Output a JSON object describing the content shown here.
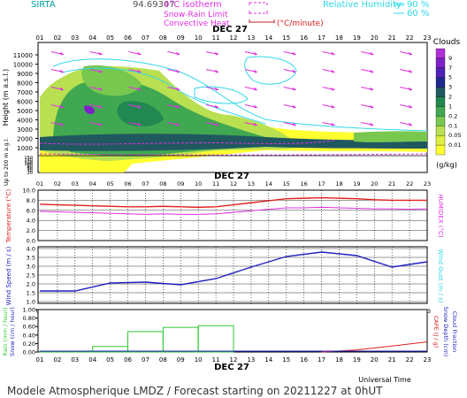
{
  "header": {
    "station": "SIRTA",
    "coords": "94.69347",
    "legend_0c": "0°C isotherm",
    "legend_snow": "Snow-Rain Limit",
    "legend_conv": "Convective Heat",
    "legend_conv_unit": "(°C/minute)",
    "rh_label": "Relative Humidity",
    "rh_90": "90 %",
    "rh_60": "60 %"
  },
  "colors": {
    "magenta": "#e030e0",
    "cyan": "#30d8e8",
    "red": "#e02020",
    "blue": "#2020c0",
    "green": "#30c830",
    "clouds": [
      "#ffff30",
      "#e0f040",
      "#b8e050",
      "#78c850",
      "#40a850",
      "#208850",
      "#205860",
      "#202890",
      "#5020b8",
      "#8020c8",
      "#b030d8"
    ]
  },
  "clouds_legend": {
    "title": "Clouds",
    "unit": "(g/kg)",
    "ticks": [
      "9",
      "7",
      "5",
      "3",
      "2",
      "1",
      "0.2",
      "0.1",
      "0.05",
      "0.01"
    ]
  },
  "date_label": "DEC 27",
  "hours": [
    "01",
    "02",
    "03",
    "04",
    "05",
    "06",
    "07",
    "08",
    "09",
    "10",
    "11",
    "12",
    "13",
    "14",
    "15",
    "16",
    "17",
    "18",
    "19",
    "20",
    "21",
    "22",
    "23"
  ],
  "chart_data": [
    {
      "type": "heatmap",
      "name": "clouds-cross-section",
      "ylabel": "Height (m a.s.l.)",
      "ylabel2": "Up to 200 m a.g.l.",
      "yticks_upper": [
        "11000",
        "10000",
        "9000",
        "8000",
        "7000",
        "6000",
        "5000",
        "4000",
        "3000",
        "2000",
        "1000"
      ],
      "yticks_lower": [
        "150",
        "140",
        "120",
        "100",
        "80",
        "60",
        "40",
        "20"
      ],
      "unit": "g/kg"
    },
    {
      "type": "line",
      "name": "temperature-panel",
      "ylabel": "Temperature (°C)",
      "ylabel_right": "HUMIDEX (°C)",
      "yticks": [
        "10.0",
        "8.0",
        "6.0",
        "4.0",
        "2.0",
        "0.0"
      ],
      "ylim": [
        0,
        10
      ],
      "x": [
        1,
        2,
        3,
        4,
        5,
        6,
        7,
        8,
        9,
        10,
        11,
        12,
        13,
        14,
        15,
        16,
        17,
        18,
        19,
        20,
        21,
        22,
        23
      ],
      "series": [
        {
          "values": [
            7.2,
            7.1,
            7.0,
            6.9,
            6.8,
            6.7,
            6.7,
            6.8,
            6.7,
            6.6,
            6.7,
            7.1,
            7.5,
            7.9,
            8.3,
            8.4,
            8.5,
            8.4,
            8.3,
            8.1,
            8.0,
            8.0,
            8.0
          ]
        },
        {
          "values": [
            5.8,
            5.7,
            5.6,
            5.5,
            5.4,
            5.3,
            5.2,
            5.3,
            5.2,
            5.2,
            5.3,
            5.6,
            5.9,
            6.2,
            6.5,
            6.5,
            6.6,
            6.5,
            6.4,
            6.3,
            6.3,
            6.2,
            6.3
          ]
        }
      ]
    },
    {
      "type": "line",
      "name": "wind-panel",
      "ylabel": "Wind Speed (m / s)",
      "ylabel_right": "Wind Gust (m / s)",
      "yticks": [
        "4.0",
        "3.5",
        "3.0",
        "2.5",
        "2.0",
        "1.5",
        "1.0"
      ],
      "ylim": [
        1.0,
        4.0
      ],
      "x": [
        1,
        3,
        5,
        7,
        9,
        11,
        13,
        15,
        17,
        19,
        21,
        23
      ],
      "series": [
        {
          "values": [
            1.6,
            1.6,
            2.05,
            2.1,
            1.95,
            2.3,
            2.95,
            3.55,
            3.8,
            3.6,
            2.95,
            3.25
          ]
        }
      ]
    },
    {
      "type": "bar",
      "name": "precip-panel",
      "ylabel": "Rain (mm / hour)",
      "ylabel2": "Snow (cm / hour)",
      "ylabel_right": "CAPE (J / g)",
      "ylabel_right2": "Snow Depth (cm)",
      "ylabel_right3": "Cloud Fraction",
      "yticks": [
        "1.00",
        "0.80",
        "0.60",
        "0.40",
        "0.20",
        "0.00"
      ],
      "ylim": [
        0,
        1
      ],
      "rain_bins": [
        {
          "x0": 1,
          "x1": 4,
          "value": 0.02
        },
        {
          "x0": 4,
          "x1": 6,
          "value": 0.13
        },
        {
          "x0": 6,
          "x1": 8,
          "value": 0.48
        },
        {
          "x0": 8,
          "x1": 10,
          "value": 0.58
        },
        {
          "x0": 10,
          "x1": 12,
          "value": 0.62
        },
        {
          "x0": 12,
          "x1": 23,
          "value": 0.0
        }
      ],
      "cape_x": [
        17,
        19,
        21,
        23
      ],
      "cape_values": [
        0.0,
        0.05,
        0.14,
        0.24
      ]
    }
  ],
  "footer": {
    "left": "Modele Atmospherique LMDZ / Forecast starting on 20211227 at 0hUT",
    "xlabel": "Universal Time"
  }
}
